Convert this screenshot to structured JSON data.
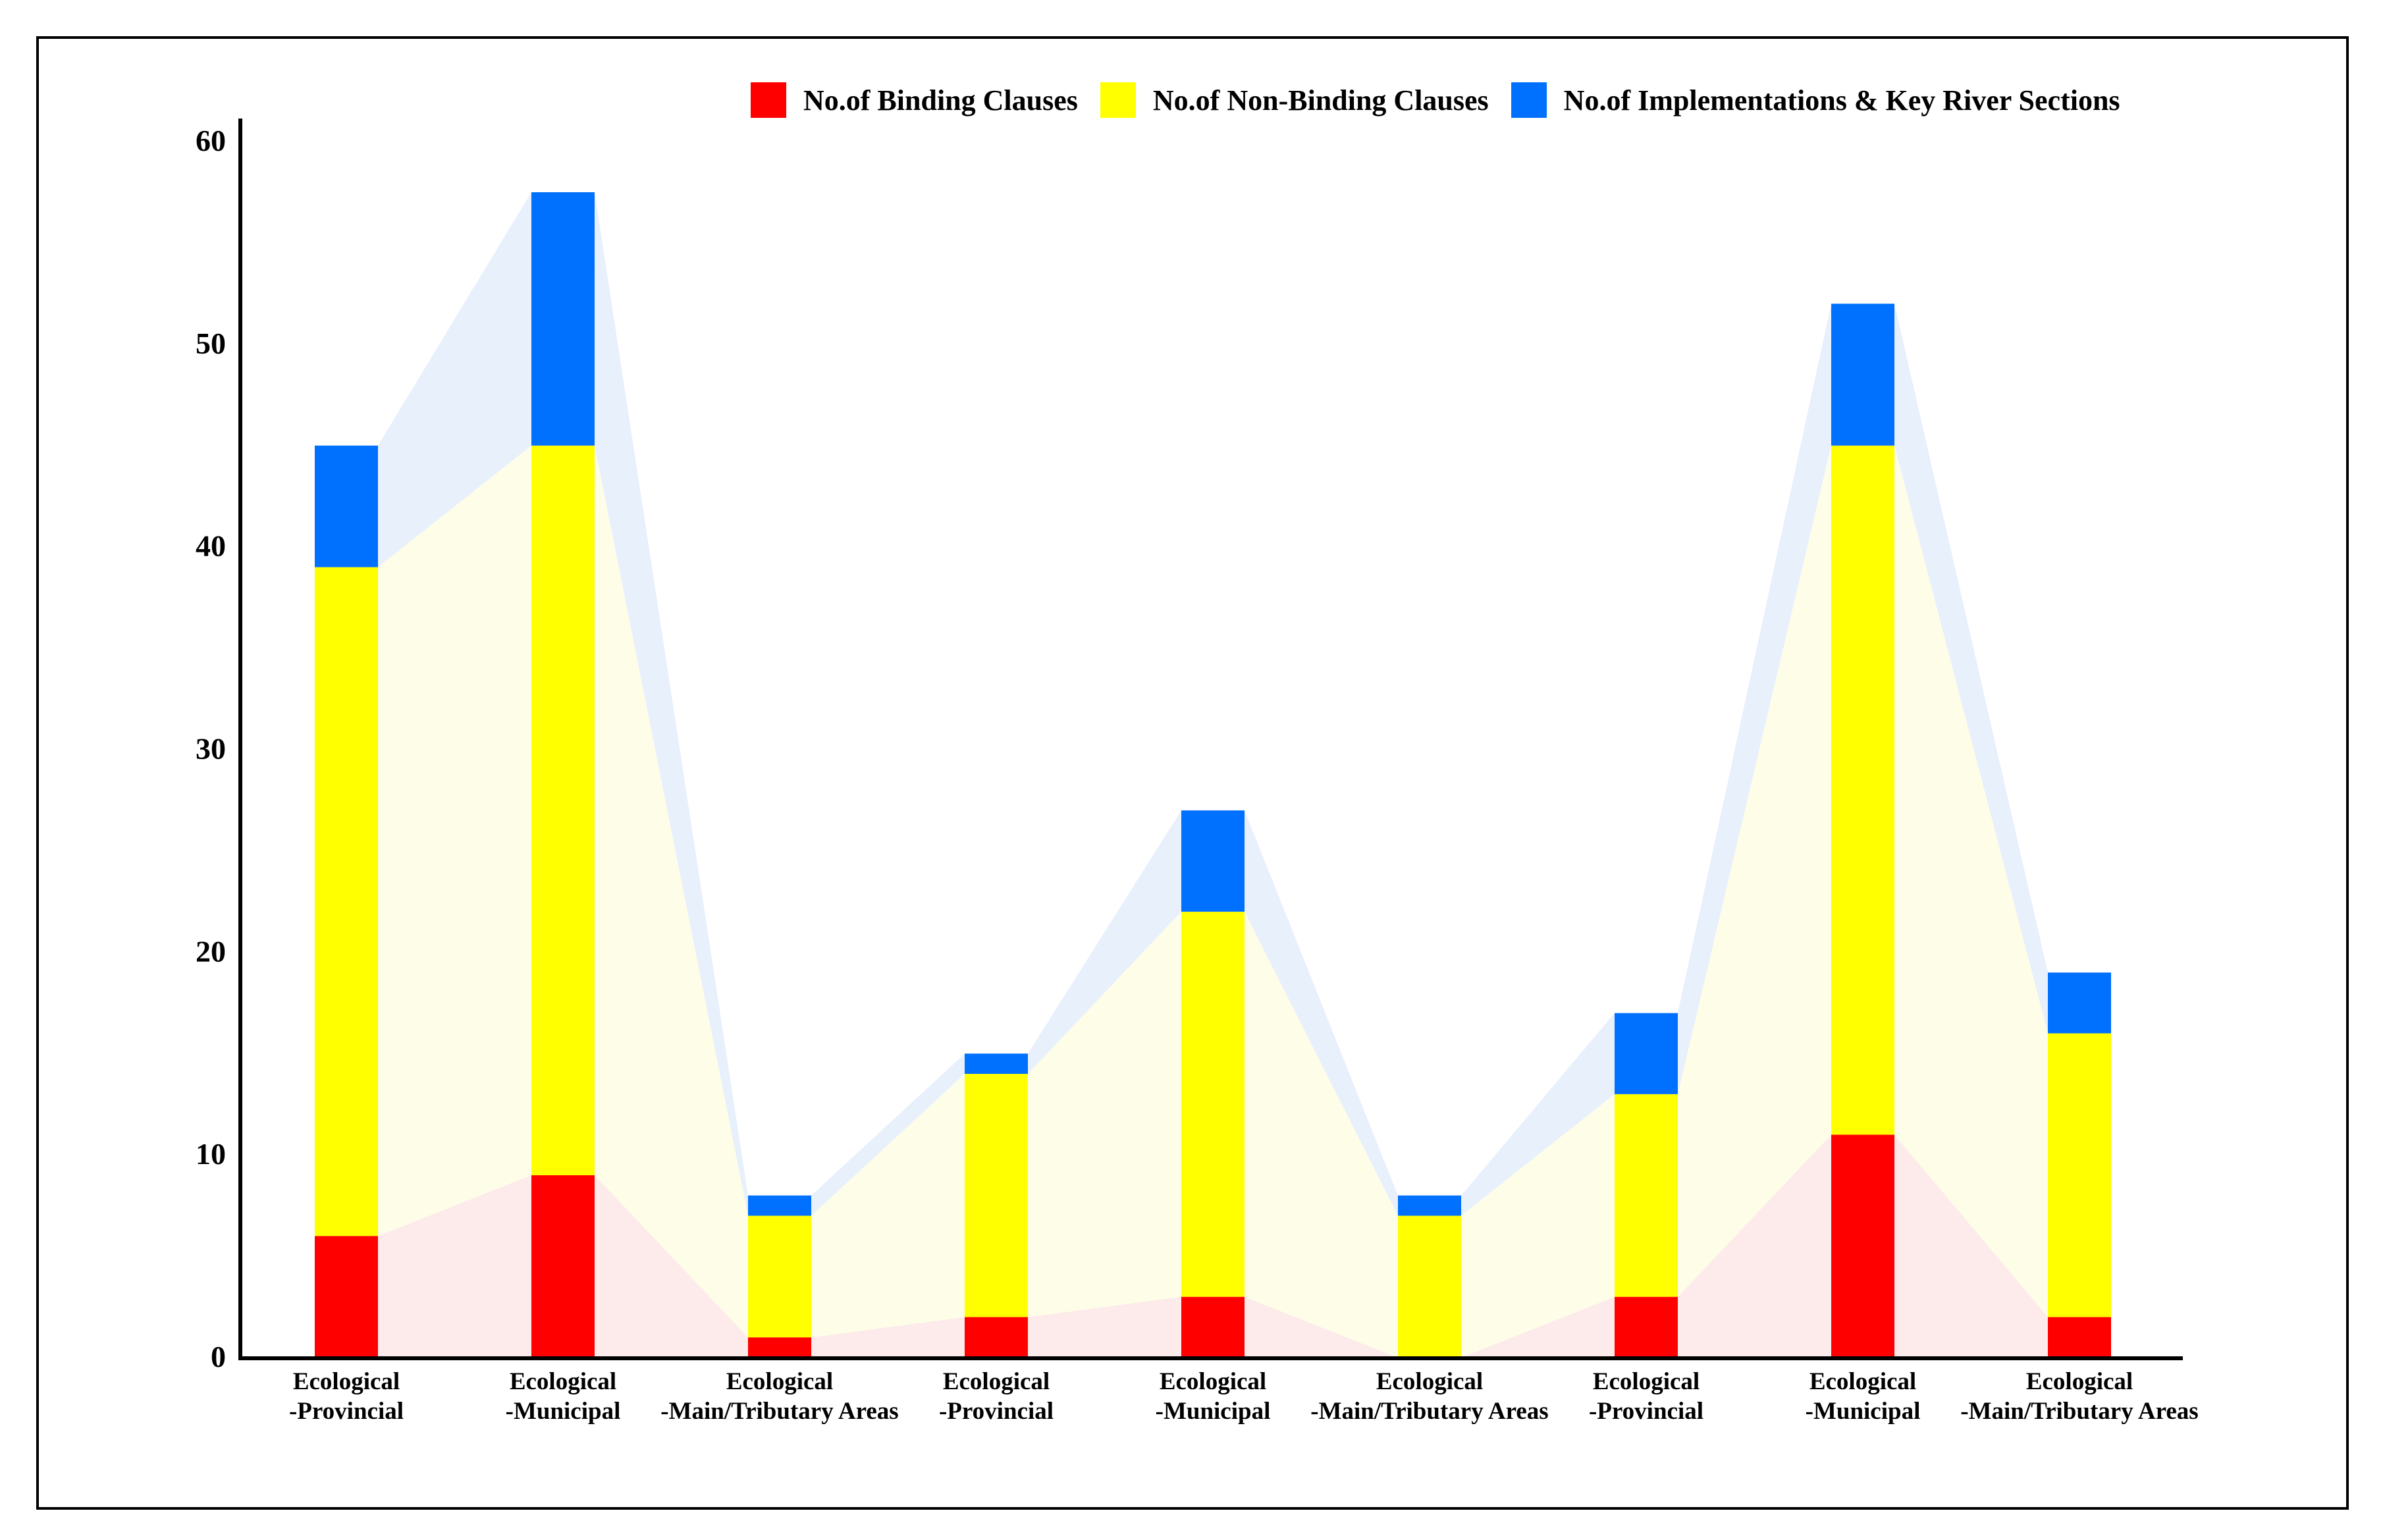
{
  "chart_data": {
    "type": "bar",
    "stacked": true,
    "categories": [
      [
        "Ecological",
        "-Provincial"
      ],
      [
        "Ecological",
        "-Municipal"
      ],
      [
        "Ecological",
        "-Main/Tributary Areas"
      ],
      [
        "Ecological",
        "-Provincial"
      ],
      [
        "Ecological",
        "-Municipal"
      ],
      [
        "Ecological",
        "-Main/Tributary Areas"
      ],
      [
        "Ecological",
        "-Provincial"
      ],
      [
        "Ecological",
        "-Municipal"
      ],
      [
        "Ecological",
        "-Main/Tributary Areas"
      ]
    ],
    "series": [
      {
        "name": "No.of Binding Clauses",
        "color": "#ff0000",
        "area_color": "#fdeaea",
        "values": [
          6,
          9,
          1,
          2,
          3,
          0,
          3,
          11,
          2
        ]
      },
      {
        "name": "No.of Non-Binding Clauses",
        "color": "#ffff00",
        "area_color": "#fefee8",
        "values": [
          33,
          36,
          6,
          12,
          19,
          7,
          10,
          34,
          14
        ]
      },
      {
        "name": "No.of Implementations & Key River Sections",
        "color": "#0070ff",
        "area_color": "#e8f0fc",
        "values": [
          6,
          12.5,
          1,
          1,
          5,
          1,
          4,
          7,
          3
        ]
      }
    ],
    "y_ticks": [
      "0",
      "10",
      "20",
      "30",
      "40",
      "50",
      "60"
    ],
    "ylim": [
      0,
      60
    ],
    "legend_position": "top-right",
    "grid": false
  }
}
